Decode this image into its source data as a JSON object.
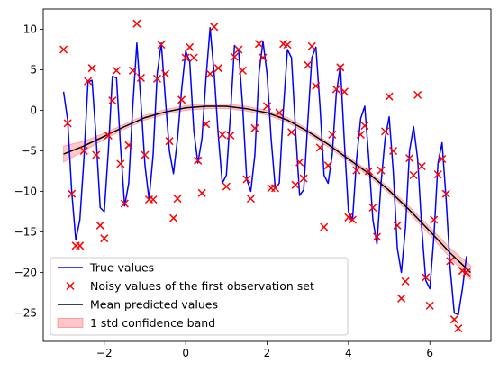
{
  "chart_data": {
    "type": "line",
    "xlim": [
      -3.5,
      7.5
    ],
    "ylim": [
      -28.5,
      12.5
    ],
    "x_ticks": [
      -2,
      0,
      2,
      4,
      6
    ],
    "y_ticks": [
      -25,
      -20,
      -15,
      -10,
      -5,
      0,
      5,
      10
    ],
    "grid": false,
    "legend_placement": "bottom-left",
    "colors": {
      "true_values": "#0000ff",
      "noisy": "#ff0000",
      "mean": "#000000",
      "band": "#ff0000"
    },
    "legend": [
      {
        "key": "true",
        "label": "True values"
      },
      {
        "key": "noisy",
        "label": "Noisy values of the first observation set"
      },
      {
        "key": "mean",
        "label": "Mean predicted values"
      },
      {
        "key": "band",
        "label": "1 std confidence band"
      }
    ],
    "true_values": {
      "name": "True values",
      "x": [
        -3.0,
        -2.9,
        -2.8,
        -2.7,
        -2.6,
        -2.5,
        -2.4,
        -2.3,
        -2.2,
        -2.1,
        -2.0,
        -1.9,
        -1.8,
        -1.7,
        -1.6,
        -1.5,
        -1.4,
        -1.3,
        -1.2,
        -1.1,
        -1.0,
        -0.9,
        -0.8,
        -0.7,
        -0.6,
        -0.5,
        -0.4,
        -0.3,
        -0.2,
        -0.1,
        0.0,
        0.1,
        0.2,
        0.3,
        0.4,
        0.5,
        0.6,
        0.7,
        0.8,
        0.9,
        1.0,
        1.1,
        1.2,
        1.3,
        1.4,
        1.5,
        1.6,
        1.7,
        1.8,
        1.9,
        2.0,
        2.1,
        2.2,
        2.3,
        2.4,
        2.5,
        2.6,
        2.7,
        2.8,
        2.9,
        3.0,
        3.1,
        3.2,
        3.3,
        3.4,
        3.5,
        3.6,
        3.7,
        3.8,
        3.9,
        4.0,
        4.1,
        4.2,
        4.3,
        4.4,
        4.5,
        4.6,
        4.7,
        4.8,
        4.9,
        5.0,
        5.1,
        5.2,
        5.3,
        5.4,
        5.5,
        5.6,
        5.7,
        5.8,
        5.9,
        6.0,
        6.1,
        6.2,
        6.3,
        6.4,
        6.5,
        6.6,
        6.7,
        6.8,
        6.9
      ],
      "y": [
        2.3,
        -1.2,
        -10.0,
        -16.0,
        -13.5,
        -6.0,
        3.5,
        3.7,
        -3.5,
        -12.0,
        -12.5,
        -5.0,
        4.2,
        4.0,
        -4.5,
        -11.8,
        -9.0,
        0.5,
        8.3,
        1.0,
        -6.8,
        -11.0,
        -5.5,
        4.5,
        8.3,
        1.5,
        -5.0,
        -7.8,
        -3.5,
        2.5,
        7.3,
        6.0,
        -2.5,
        -6.5,
        -3.5,
        4.0,
        10.2,
        4.5,
        -3.0,
        -9.0,
        -8.0,
        -0.5,
        8.0,
        7.5,
        0.5,
        -8.5,
        -10.0,
        -5.5,
        4.5,
        8.5,
        4.5,
        -3.5,
        -9.5,
        -9.0,
        0.0,
        7.5,
        6.5,
        -2.5,
        -10.5,
        -9.8,
        -1.5,
        6.5,
        7.8,
        0.5,
        -8.0,
        -9.0,
        -5.5,
        2.0,
        5.5,
        -4.0,
        -12.5,
        -13.5,
        -6.0,
        -1.0,
        0.5,
        -6.0,
        -13.5,
        -16.5,
        -9.0,
        -3.5,
        -0.8,
        -7.5,
        -17.0,
        -20.0,
        -14.5,
        -5.0,
        -2.0,
        -6.0,
        -14.5,
        -21.0,
        -22.0,
        -15.5,
        -6.5,
        -4.0,
        -11.0,
        -19.5,
        -25.0,
        -25.2,
        -22.0,
        -18.0
      ]
    },
    "noisy_values": {
      "name": "Noisy values of the first observation set",
      "x": [
        -3.0,
        -2.9,
        -2.8,
        -2.7,
        -2.6,
        -2.5,
        -2.4,
        -2.3,
        -2.2,
        -2.1,
        -2.0,
        -1.9,
        -1.8,
        -1.7,
        -1.6,
        -1.5,
        -1.4,
        -1.3,
        -1.2,
        -1.1,
        -1.0,
        -0.9,
        -0.8,
        -0.7,
        -0.6,
        -0.5,
        -0.4,
        -0.3,
        -0.2,
        -0.1,
        0.0,
        0.1,
        0.2,
        0.3,
        0.4,
        0.5,
        0.6,
        0.7,
        0.8,
        0.9,
        1.0,
        1.1,
        1.2,
        1.3,
        1.4,
        1.5,
        1.6,
        1.7,
        1.8,
        1.9,
        2.0,
        2.1,
        2.2,
        2.3,
        2.4,
        2.5,
        2.6,
        2.7,
        2.8,
        2.9,
        3.0,
        3.1,
        3.2,
        3.3,
        3.4,
        3.5,
        3.6,
        3.7,
        3.8,
        3.9,
        4.0,
        4.1,
        4.2,
        4.3,
        4.4,
        4.5,
        4.6,
        4.7,
        4.8,
        4.9,
        5.0,
        5.1,
        5.2,
        5.3,
        5.4,
        5.5,
        5.6,
        5.7,
        5.8,
        5.9,
        6.0,
        6.1,
        6.2,
        6.3,
        6.4,
        6.5,
        6.6,
        6.7,
        6.8,
        6.9
      ],
      "y": [
        7.5,
        -1.6,
        -10.3,
        -16.7,
        -16.7,
        -5.0,
        3.6,
        5.2,
        -5.5,
        -14.2,
        -15.8,
        -3.1,
        1.2,
        4.9,
        -6.6,
        -11.5,
        -4.3,
        4.9,
        10.7,
        4.0,
        -5.5,
        -11.0,
        -11.0,
        3.9,
        8.1,
        4.5,
        -3.8,
        -13.3,
        -10.9,
        1.3,
        6.5,
        7.8,
        6.5,
        -6.2,
        -10.2,
        -1.7,
        4.5,
        10.3,
        5.2,
        -3.0,
        -9.4,
        -3.1,
        6.6,
        7.5,
        4.9,
        -8.5,
        -10.9,
        -2.2,
        8.2,
        6.5,
        0.5,
        -9.6,
        -9.6,
        -0.3,
        8.2,
        8.1,
        -2.7,
        -9.2,
        -6.4,
        -8.4,
        5.6,
        7.9,
        3.0,
        -4.6,
        -14.4,
        -6.8,
        -3.0,
        2.6,
        5.3,
        2.3,
        -13.2,
        -13.5,
        -7.4,
        -3.0,
        -1.9,
        -7.5,
        -12.0,
        -15.6,
        -7.4,
        -2.6,
        1.7,
        -5.0,
        -14.2,
        -23.2,
        -21.1,
        -5.9,
        -8.0,
        1.9,
        -6.9,
        -20.6,
        -24.1,
        -13.5,
        -7.9,
        -6.0,
        -10.3,
        -18.6,
        -25.8,
        -26.9,
        -19.8,
        -20.0
      ]
    },
    "mean_predicted": {
      "name": "Mean predicted values",
      "x": [
        -3.0,
        -2.5,
        -2.0,
        -1.5,
        -1.0,
        -0.5,
        0.0,
        0.5,
        1.0,
        1.5,
        2.0,
        2.5,
        3.0,
        3.5,
        4.0,
        4.5,
        5.0,
        5.5,
        6.0,
        6.5,
        7.0
      ],
      "y": [
        -5.4,
        -4.4,
        -3.2,
        -2.0,
        -0.9,
        -0.2,
        0.3,
        0.5,
        0.5,
        0.2,
        -0.3,
        -1.2,
        -2.6,
        -4.2,
        -6.0,
        -7.8,
        -9.9,
        -12.3,
        -14.9,
        -17.6,
        -20.0
      ],
      "band_std": [
        1.0,
        0.6,
        0.4,
        0.3,
        0.3,
        0.3,
        0.3,
        0.3,
        0.3,
        0.3,
        0.3,
        0.3,
        0.3,
        0.3,
        0.3,
        0.3,
        0.35,
        0.4,
        0.5,
        0.6,
        0.9
      ]
    }
  }
}
